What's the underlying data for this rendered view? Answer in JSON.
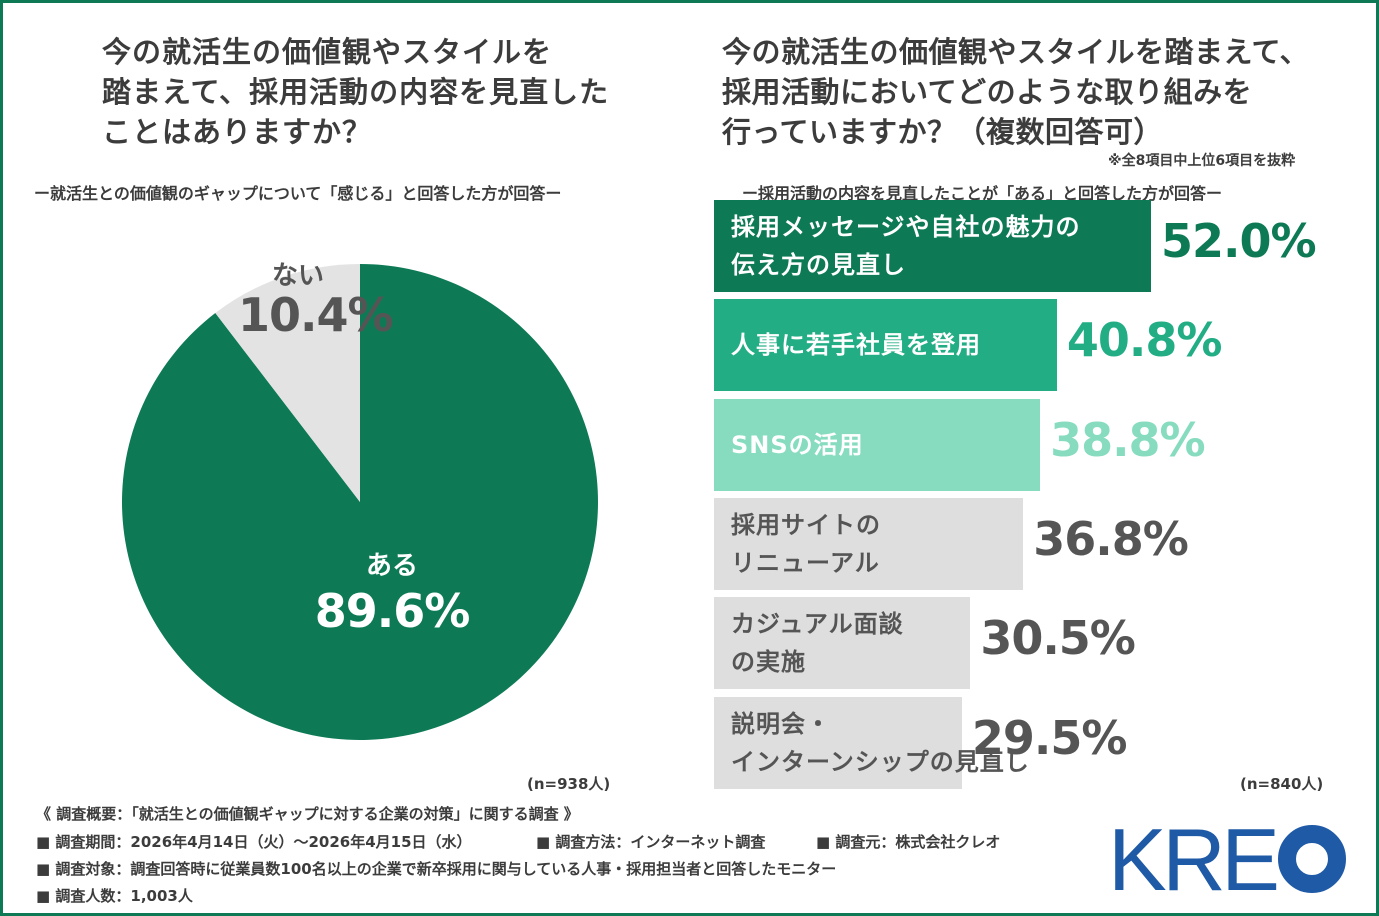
{
  "left_title_lines": [
    "今の就活生の価値観やスタイルを",
    "踏まえて、採用活動の内容を見直した",
    "ことはありますか？"
  ],
  "left_subtitle": "ー就活生との価値観のギャップについて「感じる」と回答した方が回答ー",
  "right_title_lines": [
    "今の就活生の価値観やスタイルを踏まえて、",
    "採用活動においてどのような取り組みを",
    "行っていますか？（複数回答可）"
  ],
  "right_note": "※全8項目中上位6項目を抜粋",
  "right_subtitle": "ー採用活動の内容を見直したことが「ある」と回答した方が回答ー",
  "left_n": "(n=938人)",
  "right_n": "(n=840人)",
  "colors": {
    "dark_green": "#0d7a55",
    "mid_green": "#22ad85",
    "light_green": "#87dcc0",
    "gray_bar": "#dedede",
    "pie_gray": "#e3e3e3",
    "text_gray": "#555555",
    "kreo_blue": "#1f5aa6"
  },
  "chart_data": [
    {
      "type": "pie",
      "slices": [
        {
          "label": "ある",
          "value": 89.6,
          "display": "89.6%",
          "color": "#0d7a55"
        },
        {
          "label": "ない",
          "value": 10.4,
          "display": "10.4%",
          "color": "#e3e3e3"
        }
      ]
    },
    {
      "type": "bar",
      "orientation": "horizontal",
      "categories": [
        [
          "採用メッセージや自社の魅力の",
          "伝え方の見直し"
        ],
        [
          "人事に若手社員を登用"
        ],
        [
          "SNSの活用"
        ],
        [
          "採用サイトの",
          "リニューアル"
        ],
        [
          "カジュアル面談",
          "の実施"
        ],
        [
          "説明会・",
          "インターンシップの見直し"
        ]
      ],
      "values": [
        52.0,
        40.8,
        38.8,
        36.8,
        30.5,
        29.5
      ],
      "value_labels": [
        "52.0%",
        "40.8%",
        "38.8%",
        "36.8%",
        "30.5%",
        "29.5%"
      ],
      "bar_colors": [
        "#0d7a55",
        "#22ad85",
        "#87dcc0",
        "#dedede",
        "#dedede",
        "#dedede"
      ],
      "label_colors": [
        "#ffffff",
        "#ffffff",
        "#ffffff",
        "#555555",
        "#555555",
        "#555555"
      ],
      "value_colors": [
        "#0d7a55",
        "#22ad85",
        "#87dcc0",
        "#555555",
        "#555555",
        "#555555"
      ]
    }
  ],
  "footer": {
    "overview": "《 調査概要：「就活生との価値観ギャップに対する企業の対策」に関する調査 》",
    "period": "■ 調査期間：2026年4月14日（火）～2026年4月15日（水）",
    "method": "■ 調査方法：インターネット調査",
    "source": "■ 調査元：株式会社クレオ",
    "target": "■ 調査対象：調査回答時に従業員数100名以上の企業で新卒採用に関与している人事・採用担当者と回答したモニター",
    "count": "■ 調査人数：1,003人"
  },
  "logo": {
    "text": "KREO",
    "color": "#1f5aa6"
  }
}
